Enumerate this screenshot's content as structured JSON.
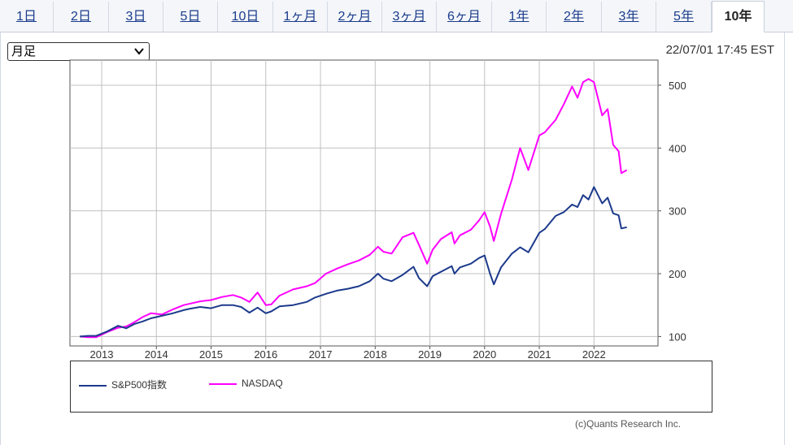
{
  "tabs": [
    {
      "label": "1日",
      "active": false
    },
    {
      "label": "2日",
      "active": false
    },
    {
      "label": "3日",
      "active": false
    },
    {
      "label": "5日",
      "active": false
    },
    {
      "label": "10日",
      "active": false
    },
    {
      "label": "1ヶ月",
      "active": false
    },
    {
      "label": "2ヶ月",
      "active": false
    },
    {
      "label": "3ヶ月",
      "active": false
    },
    {
      "label": "6ヶ月",
      "active": false
    },
    {
      "label": "1年",
      "active": false
    },
    {
      "label": "2年",
      "active": false
    },
    {
      "label": "3年",
      "active": false
    },
    {
      "label": "5年",
      "active": false
    },
    {
      "label": "10年",
      "active": true
    }
  ],
  "period_select": {
    "value": "月足"
  },
  "timestamp": "22/07/01 17:45 EST",
  "credit": "(c)Quants Research Inc.",
  "colors": {
    "sp500": "#1c3a8c",
    "nasdaq": "#ff00ff",
    "grid": "#c0c0c0",
    "link": "#1a3c8c"
  },
  "icons": {
    "select_arrow": "chevron-down-icon"
  },
  "chart_data": {
    "type": "line",
    "title": "",
    "xlabel": "",
    "ylabel": "",
    "x_ticks": [
      "2013",
      "2014",
      "2015",
      "2016",
      "2017",
      "2018",
      "2019",
      "2020",
      "2021",
      "2022"
    ],
    "y_ticks": [
      100,
      200,
      300,
      400,
      500
    ],
    "xlim": [
      2012.42,
      2023.17
    ],
    "ylim": [
      85,
      540
    ],
    "grid": true,
    "legend_position": "bottom",
    "series": [
      {
        "name": "S&P500指数",
        "color": "#1c3a8c",
        "x": [
          2012.6,
          2012.75,
          2012.9,
          2013.1,
          2013.3,
          2013.45,
          2013.6,
          2013.75,
          2013.9,
          2014.1,
          2014.3,
          2014.5,
          2014.6,
          2014.8,
          2015.0,
          2015.2,
          2015.4,
          2015.55,
          2015.7,
          2015.85,
          2016.0,
          2016.1,
          2016.25,
          2016.5,
          2016.75,
          2016.9,
          2017.1,
          2017.3,
          2017.5,
          2017.7,
          2017.9,
          2018.05,
          2018.15,
          2018.3,
          2018.5,
          2018.7,
          2018.8,
          2018.95,
          2019.05,
          2019.2,
          2019.4,
          2019.45,
          2019.55,
          2019.75,
          2019.9,
          2020.0,
          2020.1,
          2020.17,
          2020.3,
          2020.5,
          2020.65,
          2020.8,
          2021.0,
          2021.1,
          2021.3,
          2021.45,
          2021.6,
          2021.7,
          2021.8,
          2021.9,
          2022.0,
          2022.15,
          2022.25,
          2022.35,
          2022.45,
          2022.5,
          2022.6
        ],
        "y": [
          100,
          101,
          101,
          108,
          117,
          113,
          120,
          124,
          129,
          133,
          137,
          142,
          144,
          147,
          145,
          150,
          150,
          147,
          138,
          146,
          137,
          140,
          148,
          150,
          155,
          162,
          168,
          173,
          176,
          180,
          188,
          200,
          192,
          188,
          198,
          211,
          193,
          180,
          196,
          203,
          212,
          200,
          210,
          216,
          225,
          229,
          200,
          183,
          210,
          232,
          242,
          234,
          265,
          271,
          292,
          298,
          310,
          306,
          325,
          318,
          338,
          312,
          321,
          296,
          293,
          272,
          274
        ]
      },
      {
        "name": "NASDAQ",
        "color": "#ff00ff",
        "x": [
          2012.6,
          2012.75,
          2012.9,
          2013.1,
          2013.3,
          2013.45,
          2013.6,
          2013.75,
          2013.9,
          2014.1,
          2014.3,
          2014.5,
          2014.6,
          2014.8,
          2015.0,
          2015.2,
          2015.4,
          2015.55,
          2015.7,
          2015.85,
          2016.0,
          2016.1,
          2016.25,
          2016.5,
          2016.75,
          2016.9,
          2017.1,
          2017.3,
          2017.5,
          2017.7,
          2017.9,
          2018.05,
          2018.15,
          2018.3,
          2018.5,
          2018.7,
          2018.8,
          2018.95,
          2019.05,
          2019.2,
          2019.4,
          2019.45,
          2019.55,
          2019.75,
          2019.9,
          2020.0,
          2020.1,
          2020.17,
          2020.3,
          2020.5,
          2020.65,
          2020.8,
          2021.0,
          2021.1,
          2021.3,
          2021.45,
          2021.6,
          2021.7,
          2021.8,
          2021.9,
          2022.0,
          2022.15,
          2022.25,
          2022.35,
          2022.45,
          2022.5,
          2022.6
        ],
        "y": [
          100,
          99,
          99,
          107,
          114,
          116,
          123,
          131,
          137,
          135,
          143,
          150,
          152,
          156,
          158,
          163,
          166,
          162,
          155,
          170,
          150,
          151,
          165,
          175,
          180,
          185,
          200,
          208,
          215,
          221,
          230,
          243,
          235,
          232,
          258,
          265,
          246,
          216,
          238,
          255,
          266,
          248,
          261,
          270,
          285,
          298,
          275,
          252,
          295,
          350,
          400,
          365,
          420,
          425,
          445,
          470,
          498,
          480,
          505,
          510,
          505,
          452,
          462,
          405,
          395,
          360,
          365
        ]
      }
    ]
  },
  "legend": [
    {
      "label": "S&P500指数",
      "color": "#1c3a8c"
    },
    {
      "label": "NASDAQ",
      "color": "#ff00ff"
    }
  ]
}
